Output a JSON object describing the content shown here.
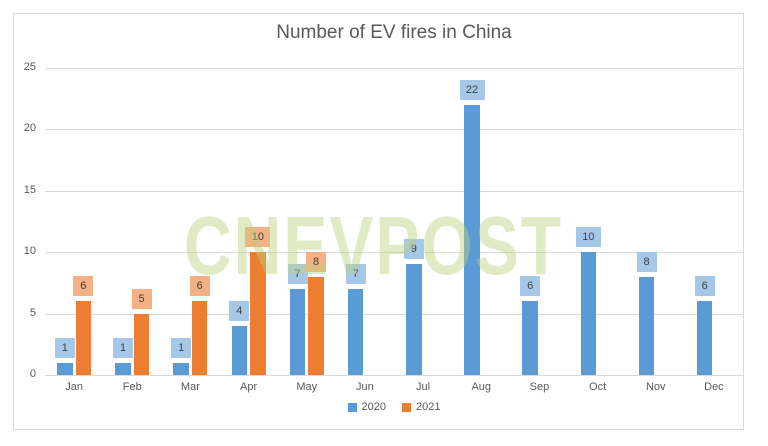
{
  "title": "Number of EV fires in China",
  "watermark_text": "CNEVPOST",
  "legend": {
    "items": [
      {
        "label": "2020",
        "color": "#5B9BD5"
      },
      {
        "label": "2021",
        "color": "#ED7D31"
      }
    ]
  },
  "chart_data": {
    "type": "bar",
    "title": "Number of EV fires in China",
    "categories": [
      "Jan",
      "Feb",
      "Mar",
      "Apr",
      "May",
      "Jun",
      "Jul",
      "Aug",
      "Sep",
      "Oct",
      "Nov",
      "Dec"
    ],
    "series": [
      {
        "name": "2020",
        "color": "#5B9BD5",
        "label_bg": "#A5C8E9",
        "values": [
          1,
          1,
          1,
          4,
          7,
          7,
          9,
          22,
          6,
          10,
          8,
          6
        ]
      },
      {
        "name": "2021",
        "color": "#ED7D31",
        "label_bg": "#F4B183",
        "values": [
          6,
          5,
          6,
          10,
          8,
          null,
          null,
          null,
          null,
          null,
          null,
          null
        ]
      }
    ],
    "ylim": [
      0,
      25
    ],
    "yticks": [
      0,
      5,
      10,
      15,
      20,
      25
    ],
    "grid": true,
    "data_labels": true,
    "legend_position": "bottom",
    "xlabel": "",
    "ylabel": "",
    "colors": {
      "axis_text": "#595959",
      "gridline": "#D9D9D9",
      "frame_border": "#D9D9D9",
      "title_text": "#595959",
      "data_label_text": "#3F3F3F",
      "watermark": "rgba(186,208,126,0.45)"
    }
  }
}
